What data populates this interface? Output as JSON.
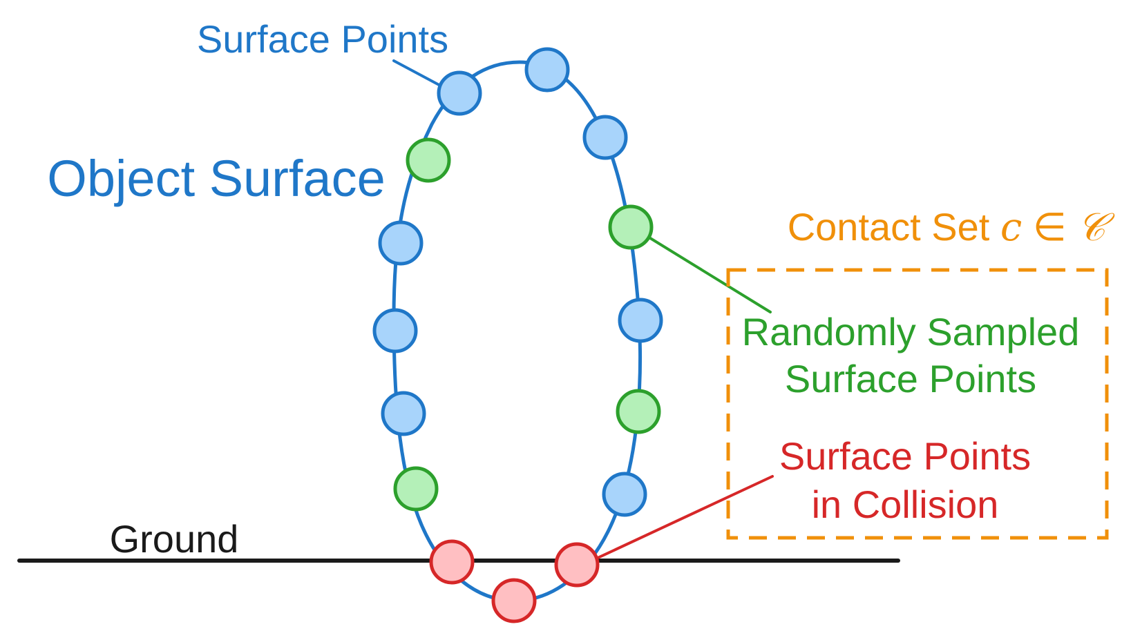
{
  "colors": {
    "blue_line": "#1f77c8",
    "blue_fill": "#a8d4fb",
    "green_line": "#2ca02c",
    "green_fill": "#b4f0b8",
    "red_line": "#d62728",
    "red_fill": "#ffbfc2",
    "orange": "#f0900a",
    "ground": "#1a1a1a"
  },
  "labels": {
    "surface_points": "Surface Points",
    "object_surface": "Object Surface",
    "ground": "Ground",
    "contact_set_text": "Contact Set ",
    "contact_set_c": "c",
    "contact_set_in": " ∈ ",
    "contact_set_C": "𝒞",
    "random_line1": "Randomly Sampled",
    "random_line2": "Surface Points",
    "collision_line1": "Surface Points",
    "collision_line2": "in Collision"
  },
  "points": [
    {
      "id": "p1",
      "kind": "surface"
    },
    {
      "id": "p2",
      "kind": "surface"
    },
    {
      "id": "p3",
      "kind": "surface"
    },
    {
      "id": "p4",
      "kind": "sampled"
    },
    {
      "id": "p5",
      "kind": "sampled"
    },
    {
      "id": "p6",
      "kind": "surface"
    },
    {
      "id": "p7",
      "kind": "surface"
    },
    {
      "id": "p8",
      "kind": "surface"
    },
    {
      "id": "p9",
      "kind": "surface"
    },
    {
      "id": "p10",
      "kind": "sampled"
    },
    {
      "id": "p11",
      "kind": "sampled"
    },
    {
      "id": "p12",
      "kind": "surface"
    },
    {
      "id": "p13",
      "kind": "collision"
    },
    {
      "id": "p14",
      "kind": "collision"
    },
    {
      "id": "p15",
      "kind": "collision"
    }
  ]
}
